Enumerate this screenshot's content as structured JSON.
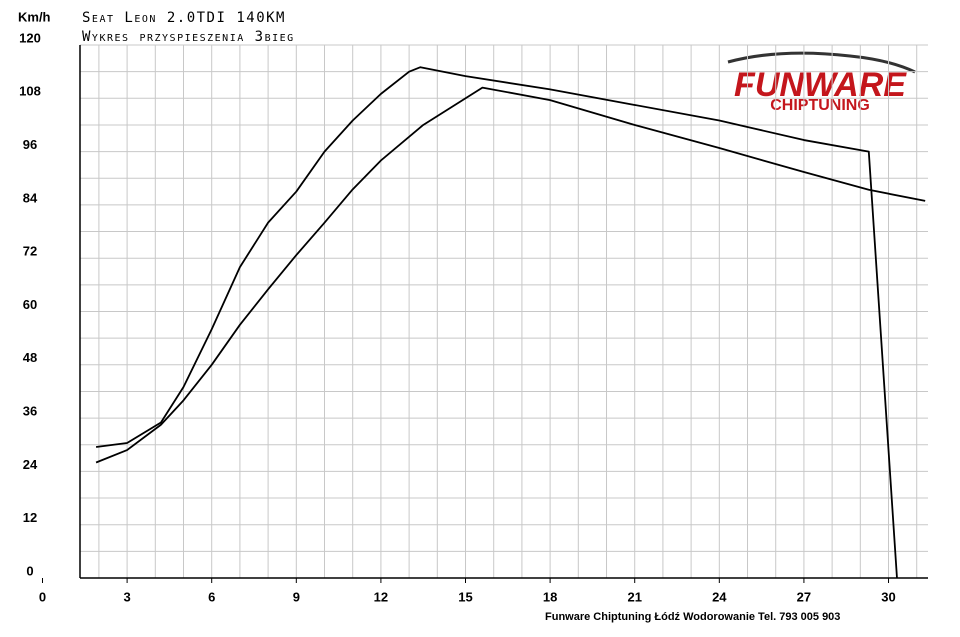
{
  "chart_data": {
    "type": "line",
    "title": "Seat Leon 2.0TDI 140KM",
    "subtitle": "Wykres przyspieszenia 3bieg",
    "y_label": "Km/h",
    "footer": "Funware Chiptuning Łódź Wodorowanie Tel. 793 005 903",
    "logo": {
      "top": "FUNWARE",
      "bottom": "CHIPTUNING"
    },
    "xlim": [
      0,
      31.4
    ],
    "ylim": [
      0,
      120
    ],
    "xticks": [
      0,
      3,
      6,
      9,
      12,
      15,
      18,
      21,
      24,
      27,
      30
    ],
    "yticks": [
      0,
      12,
      24,
      36,
      48,
      60,
      72,
      84,
      96,
      108,
      120
    ],
    "grid": true,
    "series": [
      {
        "color": "#000000",
        "x": [
          1.9,
          3,
          4.2,
          5,
          6,
          7,
          8,
          9,
          10,
          11,
          12,
          13,
          13.4,
          15,
          18,
          21,
          24,
          27,
          29.3,
          30.3
        ],
        "values": [
          29.5,
          30.4,
          35,
          43,
          56,
          70,
          80,
          87,
          96,
          103,
          109,
          114,
          115,
          113,
          110,
          106.5,
          103,
          98.6,
          96,
          0
        ]
      },
      {
        "color": "#000000",
        "x": [
          1.9,
          3,
          4.2,
          5,
          6,
          7,
          8,
          9,
          10,
          11,
          12,
          13.5,
          15.6,
          18,
          21,
          24,
          27,
          29.3,
          31.3
        ],
        "values": [
          26,
          28.8,
          34.5,
          40,
          48,
          57,
          65,
          72.7,
          80,
          87.5,
          94,
          102,
          110.4,
          107.6,
          102,
          96.8,
          91.4,
          87.4,
          84.9
        ]
      }
    ]
  }
}
